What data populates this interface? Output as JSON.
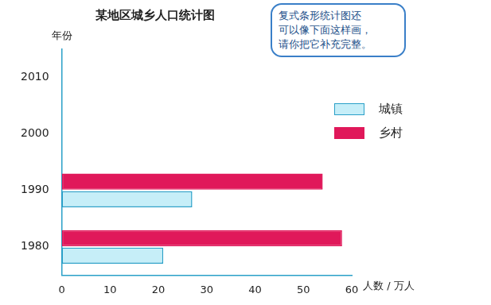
{
  "chart_data": {
    "type": "bar",
    "orientation": "horizontal",
    "title": "某地区城乡人口统计图",
    "annotation": [
      "复式条形统计图还",
      "可以像下面这样画，",
      "请你把它补充完整。"
    ],
    "y_label": "年份",
    "x_label": "人数 / 万人",
    "categories": [
      "2010",
      "2000",
      "1990",
      "1980"
    ],
    "series": [
      {
        "name": "城镇",
        "color": "#c6eef8",
        "values": [
          null,
          null,
          27,
          21
        ]
      },
      {
        "name": "乡村",
        "color": "#e0185a",
        "values": [
          null,
          null,
          54,
          58
        ]
      }
    ],
    "xlim": [
      0,
      60
    ],
    "xticks": [
      0,
      10,
      20,
      30,
      40,
      50,
      60
    ],
    "grid": false,
    "legend": "right"
  }
}
